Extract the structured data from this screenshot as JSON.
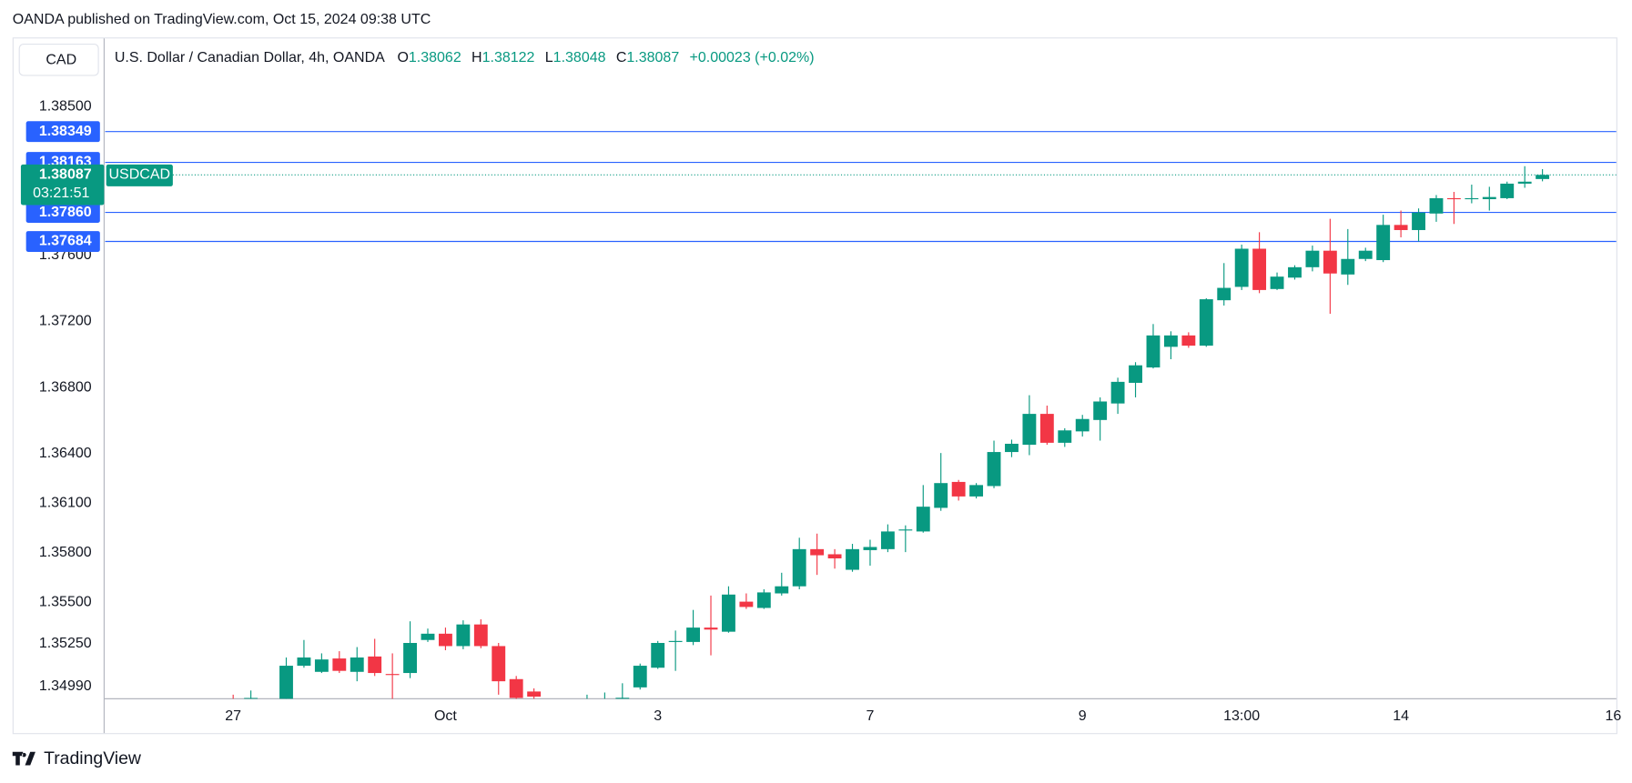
{
  "attribution": "OANDA published on TradingView.com, Oct 15, 2024 09:38 UTC",
  "logo": "TradingView",
  "currency_button": "CAD",
  "chart_data": {
    "type": "candlestick",
    "title": "U.S. Dollar / Canadian Dollar, 4h, OANDA",
    "ohlc_labels": [
      "O",
      "H",
      "L",
      "C"
    ],
    "change": "+0.00023 (+0.02%)",
    "symbol_tag": "USDCAD",
    "countdown": "03:21:51",
    "up_color": "#089981",
    "down_color": "#f23645",
    "line_color": "#2962ff",
    "grid": false,
    "categories": [
      "27",
      null,
      null,
      null,
      null,
      null,
      null,
      null,
      null,
      null,
      null,
      null,
      "Oct",
      null,
      null,
      null,
      null,
      null,
      null,
      null,
      null,
      null,
      null,
      null,
      "3",
      null,
      null,
      null,
      null,
      null,
      null,
      null,
      null,
      null,
      null,
      null,
      "7",
      null,
      null,
      null,
      null,
      null,
      null,
      null,
      null,
      null,
      null,
      null,
      "9",
      null,
      null,
      null,
      null,
      null,
      null,
      null,
      null,
      "13:00",
      null,
      null,
      null,
      null,
      null,
      null,
      null,
      null,
      "14",
      null,
      null,
      null,
      null,
      null,
      null,
      null,
      null,
      null,
      null,
      null,
      "16"
    ],
    "open": [
      1.3488,
      1.349,
      1.3489,
      1.3488,
      1.35115,
      1.35078,
      1.35159,
      1.35078,
      1.35171,
      1.35065,
      1.35071,
      1.35271,
      1.35309,
      1.35234,
      1.35365,
      1.35234,
      1.35034,
      1.34959,
      1.3491,
      1.3489,
      1.3488,
      1.349,
      1.3489,
      1.34984,
      1.35103,
      1.35259,
      1.35259,
      1.35346,
      1.35321,
      1.35503,
      1.35465,
      1.35553,
      1.35596,
      1.35821,
      1.3579,
      1.35696,
      1.35815,
      1.35821,
      1.35934,
      1.35928,
      1.36071,
      1.36228,
      1.3614,
      1.36203,
      1.36409,
      1.36453,
      1.3664,
      1.36465,
      1.36534,
      1.36603,
      1.36703,
      1.36828,
      1.36921,
      1.37046,
      1.37115,
      1.37053,
      1.37328,
      1.37409,
      1.3764,
      1.37396,
      1.37465,
      1.37528,
      1.37628,
      1.37484,
      1.37578,
      1.37571,
      1.37784,
      1.37753,
      1.37853,
      1.37946,
      1.3794,
      1.3794,
      1.37946,
      1.38034,
      1.38062,
      null,
      null,
      null,
      null
    ],
    "high": [
      1.3494,
      1.34965,
      1.3491,
      1.35165,
      1.35271,
      1.3519,
      1.35203,
      1.35228,
      1.35278,
      1.3519,
      1.35384,
      1.3534,
      1.35346,
      1.3539,
      1.35396,
      1.35253,
      1.35053,
      1.34978,
      1.3491,
      1.349,
      1.3494,
      1.34953,
      1.35009,
      1.35128,
      1.35265,
      1.35328,
      1.35453,
      1.3554,
      1.35596,
      1.35553,
      1.35578,
      1.35678,
      1.3589,
      1.35915,
      1.35821,
      1.35853,
      1.35878,
      1.35971,
      1.35965,
      1.36209,
      1.36403,
      1.3624,
      1.36221,
      1.36478,
      1.36484,
      1.36753,
      1.3669,
      1.36553,
      1.36634,
      1.3674,
      1.36859,
      1.36953,
      1.37184,
      1.3714,
      1.37134,
      1.3734,
      1.37553,
      1.37665,
      1.3774,
      1.37496,
      1.3754,
      1.37659,
      1.37821,
      1.37759,
      1.37646,
      1.37846,
      1.37871,
      1.37884,
      1.37965,
      1.37984,
      1.38028,
      1.38015,
      1.38046,
      1.3814,
      1.38122,
      null,
      null,
      null,
      null
    ],
    "low": [
      1.3478,
      1.3484,
      1.3482,
      1.3485,
      1.35103,
      1.35071,
      1.35071,
      1.35021,
      1.35053,
      1.349,
      1.3504,
      1.35259,
      1.35209,
      1.35215,
      1.35221,
      1.3494,
      1.3488,
      1.3489,
      1.348,
      1.3478,
      1.3482,
      1.3485,
      1.3486,
      1.34971,
      1.35096,
      1.35084,
      1.3524,
      1.35178,
      1.35315,
      1.35459,
      1.35459,
      1.3554,
      1.35578,
      1.35665,
      1.35703,
      1.35684,
      1.35721,
      1.35803,
      1.35803,
      1.35921,
      1.36053,
      1.36115,
      1.36128,
      1.3619,
      1.36378,
      1.3639,
      1.36453,
      1.3644,
      1.36503,
      1.36478,
      1.3664,
      1.3674,
      1.36915,
      1.36971,
      1.3704,
      1.37046,
      1.37296,
      1.3739,
      1.37371,
      1.3739,
      1.37453,
      1.37503,
      1.37246,
      1.37421,
      1.37565,
      1.37559,
      1.37709,
      1.37684,
      1.37803,
      1.3779,
      1.37915,
      1.37871,
      1.3794,
      1.38009,
      1.38048,
      null,
      null,
      null,
      null
    ],
    "close": [
      1.3485,
      1.3492,
      1.3487,
      1.35115,
      1.35165,
      1.35153,
      1.35084,
      1.35165,
      1.35071,
      1.3506,
      1.35253,
      1.35309,
      1.35234,
      1.35365,
      1.35234,
      1.35021,
      1.3492,
      1.34928,
      1.3489,
      1.3487,
      1.349,
      1.3491,
      1.34921,
      1.35115,
      1.35253,
      1.35265,
      1.35346,
      1.35334,
      1.35546,
      1.35471,
      1.35559,
      1.35596,
      1.35821,
      1.35784,
      1.35765,
      1.35821,
      1.35834,
      1.35928,
      1.3594,
      1.36078,
      1.36221,
      1.3614,
      1.36209,
      1.36409,
      1.36459,
      1.3664,
      1.36465,
      1.3654,
      1.36609,
      1.36715,
      1.36834,
      1.36934,
      1.37115,
      1.37115,
      1.37053,
      1.37334,
      1.37403,
      1.3764,
      1.3739,
      1.37471,
      1.37528,
      1.37628,
      1.3749,
      1.37578,
      1.37628,
      1.37784,
      1.37753,
      1.37859,
      1.37946,
      1.3794,
      1.37946,
      1.37953,
      1.38034,
      1.38046,
      1.38087,
      null,
      null,
      null,
      null
    ],
    "price_lines": [
      1.38349,
      1.38163,
      {
        "value": 1.3786,
        "label": "1.37860"
      },
      1.37684
    ],
    "ylim": [
      1.34915,
      1.38913
    ],
    "yticks": [
      {
        "value": 1.385,
        "label": "1.38500"
      },
      {
        "value": 1.376,
        "label": "1.37600"
      },
      {
        "value": 1.372,
        "label": "1.37200"
      },
      {
        "value": 1.368,
        "label": "1.36800"
      },
      {
        "value": 1.364,
        "label": "1.36400"
      },
      {
        "value": 1.361,
        "label": "1.36100"
      },
      {
        "value": 1.358,
        "label": "1.35800"
      },
      {
        "value": 1.355,
        "label": "1.35500"
      },
      {
        "value": 1.3525,
        "label": "1.35250"
      },
      {
        "value": 1.3499,
        "label": "1.34990"
      }
    ]
  }
}
